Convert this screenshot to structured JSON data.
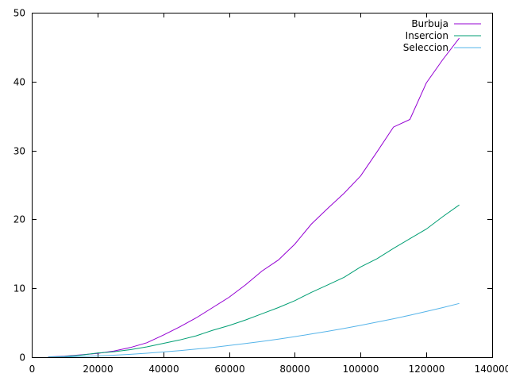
{
  "chart_data": {
    "type": "line",
    "title": "",
    "xlabel": "",
    "ylabel": "",
    "xlim": [
      0,
      140000
    ],
    "ylim": [
      0,
      50
    ],
    "x_ticks": [
      0,
      20000,
      40000,
      60000,
      80000,
      100000,
      120000,
      140000
    ],
    "y_ticks": [
      0,
      10,
      20,
      30,
      40,
      50
    ],
    "x_tick_labels": [
      "0",
      "20000",
      "40000",
      "60000",
      "80000",
      "100000",
      "120000",
      "140000"
    ],
    "y_tick_labels": [
      "0",
      "10",
      "20",
      "30",
      "40",
      "50"
    ],
    "grid": false,
    "legend_position": "top-right",
    "series": [
      {
        "name": "Burbuja",
        "color": "#9400d3",
        "x": [
          5000,
          10000,
          15000,
          20000,
          25000,
          30000,
          35000,
          40000,
          45000,
          50000,
          55000,
          60000,
          65000,
          70000,
          75000,
          80000,
          85000,
          90000,
          95000,
          100000,
          105000,
          110000,
          115000,
          120000,
          125000,
          130000
        ],
        "values": [
          0.05,
          0.15,
          0.35,
          0.55,
          0.9,
          1.4,
          2.1,
          3.2,
          4.4,
          5.7,
          7.2,
          8.7,
          10.5,
          12.5,
          14.1,
          16.4,
          19.3,
          21.6,
          23.8,
          26.3,
          29.8,
          33.4,
          34.5,
          39.8,
          43.2,
          46.3
        ]
      },
      {
        "name": "Insercion",
        "color": "#009e73",
        "x": [
          5000,
          10000,
          15000,
          20000,
          25000,
          30000,
          35000,
          40000,
          45000,
          50000,
          55000,
          60000,
          65000,
          70000,
          75000,
          80000,
          85000,
          90000,
          95000,
          100000,
          105000,
          110000,
          115000,
          120000,
          125000,
          130000
        ],
        "values": [
          0.03,
          0.1,
          0.3,
          0.6,
          0.8,
          1.1,
          1.5,
          2.0,
          2.5,
          3.1,
          3.9,
          4.6,
          5.4,
          6.3,
          7.2,
          8.2,
          9.4,
          10.5,
          11.6,
          13.1,
          14.3,
          15.8,
          17.2,
          18.6,
          20.4,
          22.1
        ]
      },
      {
        "name": "Seleccion",
        "color": "#56b4e9",
        "x": [
          5000,
          10000,
          15000,
          20000,
          25000,
          30000,
          35000,
          40000,
          45000,
          50000,
          55000,
          60000,
          65000,
          70000,
          75000,
          80000,
          85000,
          90000,
          95000,
          100000,
          105000,
          110000,
          115000,
          120000,
          125000,
          130000
        ],
        "values": [
          0.01,
          0.04,
          0.1,
          0.18,
          0.29,
          0.42,
          0.58,
          0.76,
          0.96,
          1.18,
          1.42,
          1.69,
          1.98,
          2.29,
          2.62,
          2.98,
          3.36,
          3.76,
          4.18,
          4.62,
          5.1,
          5.58,
          6.1,
          6.64,
          7.2,
          7.8
        ]
      }
    ]
  }
}
